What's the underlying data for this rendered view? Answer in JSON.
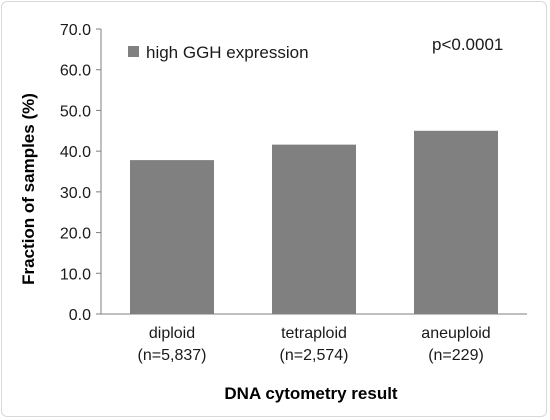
{
  "chart_data": {
    "type": "bar",
    "categories": [
      {
        "line1": "diploid",
        "line2": "(n=5,837)"
      },
      {
        "line1": "tetraploid",
        "line2": "(n=2,574)"
      },
      {
        "line1": "aneuploid",
        "line2": "(n=229)"
      }
    ],
    "series": [
      {
        "name": "high GGH expression",
        "values": [
          37.8,
          41.6,
          45.0
        ],
        "color": "#808080"
      }
    ],
    "xlabel": "DNA cytometry result",
    "ylabel": "Fraction of samples (%)",
    "ylim": [
      0,
      70
    ],
    "yticks": [
      "0.0",
      "10.0",
      "20.0",
      "30.0",
      "40.0",
      "50.0",
      "60.0",
      "70.0"
    ],
    "ytick_values": [
      0,
      10,
      20,
      30,
      40,
      50,
      60,
      70
    ],
    "annotation": "p<0.0001",
    "legend_position": "top-left",
    "grid": false,
    "axis_color": "#7f7f7f"
  }
}
